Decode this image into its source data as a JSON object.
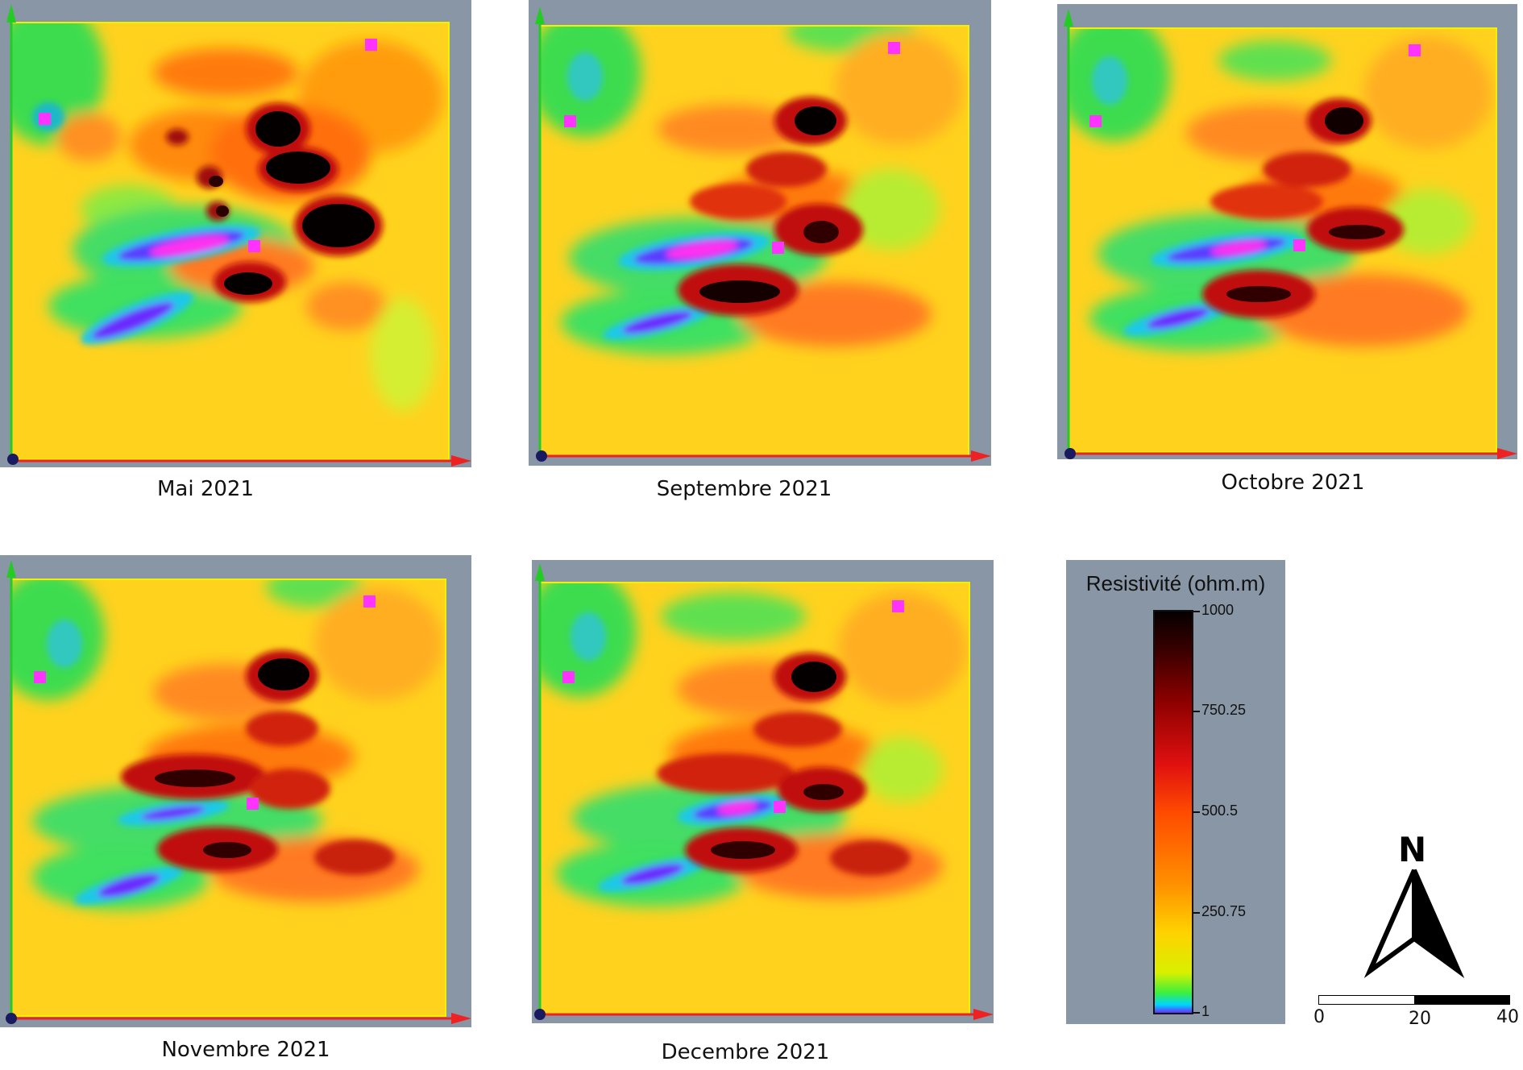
{
  "panels": [
    {
      "caption": "Mai 2021"
    },
    {
      "caption": "Septembre 2021"
    },
    {
      "caption": "Octobre 2021"
    },
    {
      "caption": "Novembre 2021"
    },
    {
      "caption": "Decembre 2021"
    }
  ],
  "legend": {
    "title": "Resistivité (ohm.m)",
    "ticks": [
      "1000",
      "750.25",
      "500.5",
      "250.75",
      "1"
    ]
  },
  "north_arrow": {
    "label": "N"
  },
  "scale_bar": {
    "labels": [
      "0",
      "20",
      "40"
    ]
  },
  "colors": {
    "background": "#ffffff",
    "frame": "#8896a6",
    "field": "#ffd21e",
    "station_marker": "#ff33ff",
    "axis_x": "#ee2222",
    "axis_y": "#22cc22",
    "origin": "#1a1a60"
  }
}
